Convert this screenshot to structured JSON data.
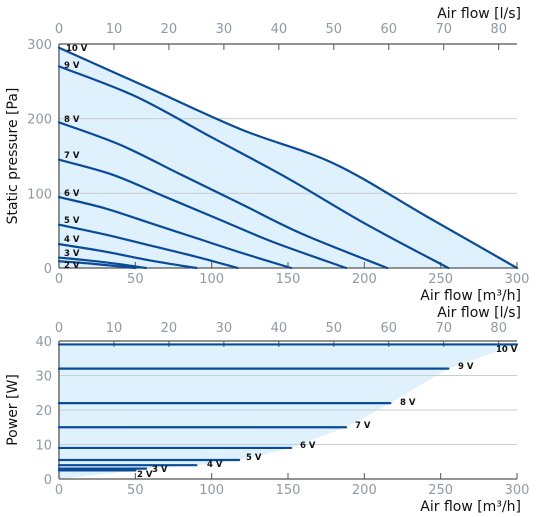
{
  "chart_data": [
    {
      "type": "line",
      "top_xlabel": "Air flow [l/s]",
      "xlabel": "Air flow [m³/h]",
      "ylabel": "Static pressure [Pa]",
      "xlim": [
        0,
        300
      ],
      "ylim": [
        0,
        300
      ],
      "top_xlim": [
        0,
        83.33
      ],
      "xticks": [
        0,
        50,
        100,
        150,
        200,
        250,
        300
      ],
      "yticks": [
        0,
        100,
        200,
        300
      ],
      "top_xticks": [
        0,
        10,
        20,
        30,
        40,
        50,
        60,
        70,
        80
      ],
      "colors": {
        "curve": "#0a4a96",
        "area": "#dff1fc",
        "grid": "#c9cfd4"
      },
      "grid": true,
      "series": [
        {
          "name": "10 V",
          "x": [
            0,
            60,
            120,
            180,
            240,
            300
          ],
          "y": [
            295,
            240,
            185,
            140,
            70,
            0
          ]
        },
        {
          "name": "9 V",
          "x": [
            0,
            50,
            100,
            150,
            200,
            255
          ],
          "y": [
            270,
            230,
            175,
            120,
            60,
            0
          ]
        },
        {
          "name": "8 V",
          "x": [
            0,
            40,
            80,
            120,
            160,
            215
          ],
          "y": [
            195,
            165,
            125,
            85,
            45,
            0
          ]
        },
        {
          "name": "7 V",
          "x": [
            0,
            35,
            70,
            105,
            140,
            188
          ],
          "y": [
            145,
            125,
            95,
            65,
            35,
            0
          ]
        },
        {
          "name": "6 V",
          "x": [
            0,
            30,
            60,
            90,
            120,
            152
          ],
          "y": [
            95,
            80,
            60,
            40,
            20,
            0
          ]
        },
        {
          "name": "5 V",
          "x": [
            0,
            30,
            60,
            90,
            117
          ],
          "y": [
            58,
            45,
            30,
            15,
            0
          ]
        },
        {
          "name": "4 V",
          "x": [
            0,
            30,
            60,
            90
          ],
          "y": [
            32,
            22,
            10,
            0
          ]
        },
        {
          "name": "3 V",
          "x": [
            0,
            20,
            40,
            57
          ],
          "y": [
            14,
            10,
            5,
            0
          ]
        },
        {
          "name": "2 V",
          "x": [
            0,
            20,
            40,
            50
          ],
          "y": [
            9,
            6,
            2,
            0
          ]
        }
      ]
    },
    {
      "type": "line",
      "top_xlabel": "Air flow [l/s]",
      "xlabel": "Air flow [m³/h]",
      "ylabel": "Power [W]",
      "xlim": [
        0,
        300
      ],
      "ylim": [
        0,
        40
      ],
      "top_xlim": [
        0,
        83.33
      ],
      "xticks": [
        0,
        50,
        100,
        150,
        200,
        250,
        300
      ],
      "yticks": [
        0,
        10,
        20,
        30,
        40
      ],
      "top_xticks": [
        0,
        10,
        20,
        30,
        40,
        50,
        60,
        70,
        80
      ],
      "colors": {
        "curve": "#0a4a96",
        "area": "#dff1fc",
        "grid": "#c9cfd4"
      },
      "grid": true,
      "series": [
        {
          "name": "10 V",
          "x": [
            0,
            300
          ],
          "y": [
            39,
            39
          ]
        },
        {
          "name": "9 V",
          "x": [
            0,
            255
          ],
          "y": [
            32,
            32
          ]
        },
        {
          "name": "8 V",
          "x": [
            0,
            217
          ],
          "y": [
            22,
            22
          ]
        },
        {
          "name": "7 V",
          "x": [
            0,
            188
          ],
          "y": [
            15,
            15
          ]
        },
        {
          "name": "6 V",
          "x": [
            0,
            152
          ],
          "y": [
            9,
            9
          ]
        },
        {
          "name": "5 V",
          "x": [
            0,
            118
          ],
          "y": [
            5.5,
            5.5
          ]
        },
        {
          "name": "4 V",
          "x": [
            0,
            90
          ],
          "y": [
            4,
            4
          ]
        },
        {
          "name": "3 V",
          "x": [
            0,
            57
          ],
          "y": [
            3,
            3
          ]
        },
        {
          "name": "2 V",
          "x": [
            0,
            50
          ],
          "y": [
            2.5,
            2.5
          ]
        }
      ]
    }
  ]
}
